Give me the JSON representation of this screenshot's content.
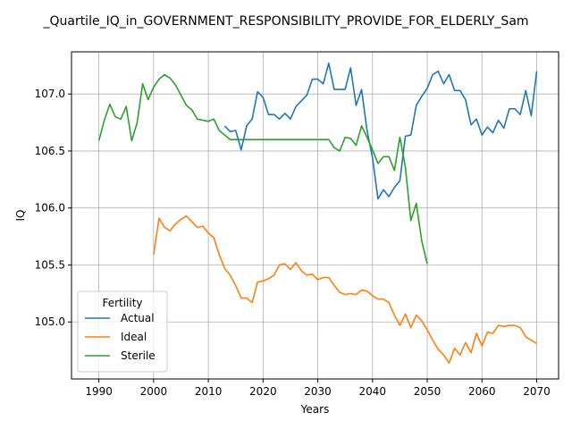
{
  "chart_data": {
    "type": "line",
    "title": "_Quartile_IQ_in_GOVERNMENT_RESPONSIBILITY_PROVIDE_FOR_ELDERLY_Sam",
    "xlabel": "Years",
    "ylabel": "IQ",
    "xlim": [
      1985,
      2074
    ],
    "ylim": [
      104.5,
      107.37
    ],
    "xticks": [
      1990,
      2000,
      2010,
      2020,
      2030,
      2040,
      2050,
      2060,
      2070
    ],
    "yticks": [
      105.0,
      105.5,
      106.0,
      106.5,
      107.0
    ],
    "ytick_labels": [
      "105.0",
      "105.5",
      "106.0",
      "106.5",
      "107.0"
    ],
    "grid": true,
    "legend": {
      "title": "Fertility",
      "position": "lower-left"
    },
    "series": [
      {
        "name": "Actual",
        "color": "#1f77b4",
        "x": [
          2013,
          2014,
          2015,
          2016,
          2017,
          2018,
          2019,
          2020,
          2021,
          2022,
          2023,
          2024,
          2025,
          2026,
          2027,
          2028,
          2029,
          2030,
          2031,
          2032,
          2033,
          2034,
          2035,
          2036,
          2037,
          2038,
          2039,
          2040,
          2041,
          2042,
          2043,
          2044,
          2045,
          2046,
          2047,
          2048,
          2049,
          2050,
          2051,
          2052,
          2053,
          2054,
          2055,
          2056,
          2057,
          2058,
          2059,
          2060,
          2061,
          2062,
          2063,
          2064,
          2065,
          2066,
          2067,
          2068,
          2069,
          2070
        ],
        "values": [
          106.72,
          106.67,
          106.68,
          106.51,
          106.72,
          106.78,
          107.02,
          106.97,
          106.82,
          106.82,
          106.78,
          106.83,
          106.78,
          106.89,
          106.94,
          106.99,
          107.13,
          107.13,
          107.09,
          107.27,
          107.04,
          107.04,
          107.04,
          107.23,
          106.9,
          107.04,
          106.68,
          106.44,
          106.08,
          106.16,
          106.1,
          106.18,
          106.24,
          106.63,
          106.64,
          106.9,
          106.98,
          107.05,
          107.17,
          107.2,
          107.09,
          107.17,
          107.03,
          107.03,
          106.95,
          106.73,
          106.78,
          106.64,
          106.71,
          106.66,
          106.77,
          106.7,
          106.87,
          106.87,
          106.82,
          107.03,
          106.81,
          107.2
        ]
      },
      {
        "name": "Ideal",
        "color": "#ff7f0e",
        "x": [
          2000,
          2001,
          2002,
          2003,
          2004,
          2005,
          2006,
          2007,
          2008,
          2009,
          2010,
          2011,
          2012,
          2013,
          2014,
          2015,
          2016,
          2017,
          2018,
          2019,
          2020,
          2021,
          2022,
          2023,
          2024,
          2025,
          2026,
          2027,
          2028,
          2029,
          2030,
          2031,
          2032,
          2033,
          2034,
          2035,
          2036,
          2037,
          2038,
          2039,
          2040,
          2041,
          2042,
          2043,
          2044,
          2045,
          2046,
          2047,
          2048,
          2049,
          2050,
          2051,
          2052,
          2053,
          2054,
          2055,
          2056,
          2057,
          2058,
          2059,
          2060,
          2061,
          2062,
          2063,
          2064,
          2065,
          2066,
          2067,
          2068,
          2069,
          2070
        ],
        "values": [
          105.59,
          105.91,
          105.83,
          105.8,
          105.86,
          105.9,
          105.93,
          105.88,
          105.83,
          105.84,
          105.78,
          105.74,
          105.59,
          105.47,
          105.41,
          105.32,
          105.21,
          105.21,
          105.17,
          105.35,
          105.36,
          105.38,
          105.41,
          105.5,
          105.51,
          105.46,
          105.52,
          105.45,
          105.41,
          105.42,
          105.37,
          105.39,
          105.39,
          105.32,
          105.26,
          105.24,
          105.25,
          105.24,
          105.28,
          105.27,
          105.23,
          105.2,
          105.2,
          105.17,
          105.06,
          104.97,
          105.07,
          104.95,
          105.06,
          105.01,
          104.93,
          104.84,
          104.76,
          104.71,
          104.64,
          104.77,
          104.71,
          104.82,
          104.73,
          104.9,
          104.79,
          104.91,
          104.9,
          104.97,
          104.96,
          104.97,
          104.97,
          104.95,
          104.87,
          104.84,
          104.81
        ]
      },
      {
        "name": "Sterile",
        "color": "#2ca02c",
        "x": [
          1990,
          1991,
          1992,
          1993,
          1994,
          1995,
          1996,
          1997,
          1998,
          1999,
          2000,
          2001,
          2002,
          2003,
          2004,
          2005,
          2006,
          2007,
          2008,
          2009,
          2010,
          2011,
          2012,
          2013,
          2014,
          2015,
          2016,
          2017,
          2018,
          2019,
          2020,
          2021,
          2022,
          2023,
          2024,
          2025,
          2026,
          2027,
          2028,
          2029,
          2030,
          2031,
          2032,
          2033,
          2034,
          2035,
          2036,
          2037,
          2038,
          2039,
          2040,
          2041,
          2042,
          2043,
          2044,
          2045,
          2046,
          2047,
          2048,
          2049,
          2050
        ],
        "values": [
          106.59,
          106.77,
          106.91,
          106.8,
          106.78,
          106.89,
          106.59,
          106.75,
          107.09,
          106.95,
          107.06,
          107.13,
          107.17,
          107.14,
          107.08,
          106.99,
          106.9,
          106.86,
          106.78,
          106.77,
          106.76,
          106.78,
          106.68,
          106.64,
          106.6,
          106.6,
          106.6,
          106.6,
          106.6,
          106.6,
          106.6,
          106.6,
          106.6,
          106.6,
          106.6,
          106.6,
          106.6,
          106.6,
          106.6,
          106.6,
          106.6,
          106.6,
          106.6,
          106.53,
          106.5,
          106.62,
          106.61,
          106.55,
          106.72,
          106.62,
          106.51,
          106.39,
          106.45,
          106.45,
          106.33,
          106.62,
          106.36,
          105.89,
          106.04,
          105.71,
          105.51
        ]
      }
    ]
  }
}
